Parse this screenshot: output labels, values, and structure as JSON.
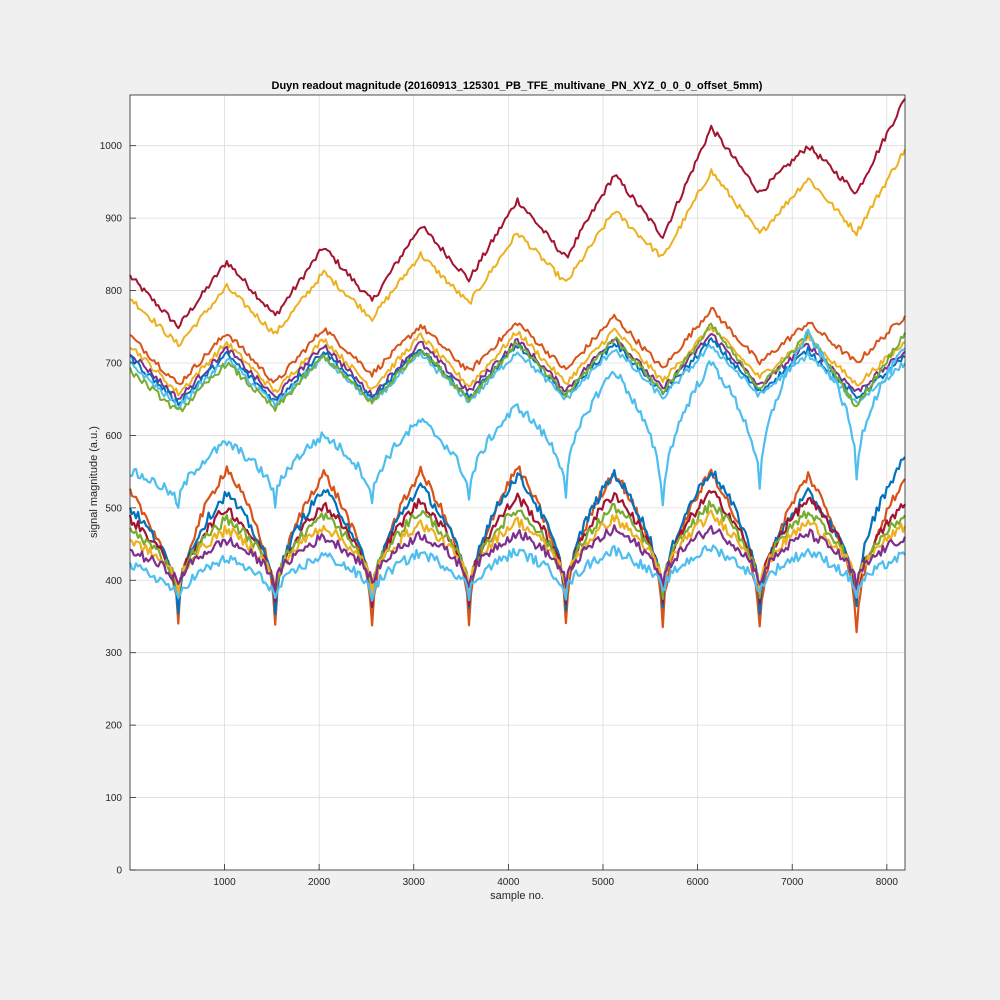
{
  "chart_data": {
    "type": "line",
    "title": "Duyn readout magnitude (20160913_125301_PB_TFE_multivane_PN_XYZ_0_0_0_offset_5mm)",
    "xlabel": "sample no.",
    "ylabel": "signal magnitude (a.u.)",
    "xlim": [
      1,
      8192
    ],
    "ylim": [
      0,
      1070
    ],
    "xticks": [
      1000,
      2000,
      3000,
      4000,
      5000,
      6000,
      7000,
      8000
    ],
    "yticks": [
      0,
      100,
      200,
      300,
      400,
      500,
      600,
      700,
      800,
      900,
      1000
    ],
    "grid": true,
    "legend": "none",
    "colors": [
      "#0072BD",
      "#D95319",
      "#EDB120",
      "#7E2F8E",
      "#77AC30",
      "#4DBEEE",
      "#A2142F"
    ],
    "series_groups": [
      {
        "group": "top",
        "note_values": "approximate sawtooth, period ~1024 samples",
        "x": [
          1,
          512,
          1024,
          1536,
          2048,
          2560,
          3072,
          3584,
          4096,
          4608,
          5120,
          5632,
          6144,
          6656,
          7168,
          7680,
          8192
        ],
        "series": [
          {
            "color": "#A2142F",
            "values": [
              820,
              750,
              840,
              765,
              860,
              785,
              890,
              815,
              925,
              845,
              960,
              875,
              1025,
              935,
              1000,
              935,
              1065
            ]
          },
          {
            "color": "#EDB120",
            "values": [
              790,
              725,
              805,
              740,
              825,
              762,
              850,
              782,
              880,
              810,
              910,
              845,
              965,
              878,
              955,
              880,
              995
            ]
          }
        ]
      },
      {
        "group": "middle",
        "x": [
          1,
          512,
          1024,
          1536,
          2048,
          2560,
          3072,
          3584,
          4096,
          4608,
          5120,
          5632,
          6144,
          6656,
          7168,
          7680,
          8192
        ],
        "series": [
          {
            "color": "#D95319",
            "values": [
              738,
              670,
              742,
              672,
              748,
              685,
              752,
              688,
              756,
              690,
              764,
              692,
              775,
              700,
              756,
              700,
              765
            ]
          },
          {
            "color": "#EDB120",
            "values": [
              725,
              658,
              728,
              660,
              733,
              665,
              738,
              668,
              743,
              672,
              746,
              675,
              750,
              680,
              735,
              670,
              728
            ]
          },
          {
            "color": "#7E2F8E",
            "values": [
              715,
              650,
              720,
              652,
              725,
              655,
              728,
              660,
              732,
              662,
              736,
              664,
              740,
              668,
              726,
              660,
              716
            ]
          },
          {
            "color": "#0072BD",
            "values": [
              708,
              645,
              712,
              647,
              717,
              650,
              720,
              652,
              725,
              655,
              728,
              657,
              732,
              660,
              718,
              652,
              708
            ]
          },
          {
            "color": "#4DBEEE",
            "values": [
              700,
              640,
              705,
              642,
              708,
              645,
              712,
              647,
              716,
              650,
              720,
              652,
              724,
              655,
              712,
              645,
              700
            ]
          },
          {
            "color": "#77AC30",
            "values": [
              690,
              632,
              700,
              636,
              710,
              645,
              720,
              650,
              728,
              655,
              735,
              660,
              752,
              665,
              740,
              640,
              742
            ]
          }
        ]
      },
      {
        "group": "bottom",
        "note_values": "approximate arch (scalloped) bundles, cusp minima ~330 near every 512+1024k samples",
        "x": [
          1,
          512,
          1024,
          1536,
          2048,
          2560,
          3072,
          3584,
          4096,
          4608,
          5120,
          5632,
          6144,
          6656,
          7168,
          7680,
          8192
        ],
        "series": [
          {
            "color": "#4DBEEE",
            "values": [
              550,
              500,
              590,
              505,
              600,
              505,
              620,
              510,
              640,
              520,
              690,
              500,
              700,
              520,
              740,
              540,
              720
            ]
          },
          {
            "color": "#D95319",
            "values": [
              520,
              340,
              555,
              340,
              548,
              335,
              550,
              335,
              555,
              340,
              550,
              338,
              550,
              330,
              545,
              325,
              540
            ]
          },
          {
            "color": "#0072BD",
            "values": [
              500,
              360,
              520,
              360,
              525,
              360,
              530,
              360,
              545,
              360,
              548,
              360,
              552,
              360,
              520,
              360,
              570
            ]
          },
          {
            "color": "#A2142F",
            "values": [
              485,
              370,
              500,
              370,
              505,
              370,
              510,
              370,
              515,
              370,
              520,
              370,
              522,
              370,
              512,
              370,
              505
            ]
          },
          {
            "color": "#77AC30",
            "values": [
              470,
              380,
              485,
              380,
              490,
              380,
              495,
              380,
              498,
              380,
              502,
              380,
              505,
              380,
              495,
              380,
              490
            ]
          },
          {
            "color": "#EDB120",
            "values": [
              455,
              385,
              470,
              385,
              475,
              385,
              478,
              385,
              482,
              385,
              486,
              385,
              490,
              385,
              480,
              385,
              475
            ]
          },
          {
            "color": "#7E2F8E",
            "values": [
              440,
              390,
              455,
              390,
              460,
              390,
              463,
              390,
              466,
              390,
              470,
              390,
              472,
              390,
              465,
              390,
              460
            ]
          },
          {
            "color": "#4DBEEE",
            "values": [
              420,
              370,
              430,
              372,
              435,
              375,
              438,
              378,
              440,
              378,
              442,
              380,
              445,
              380,
              440,
              378,
              435
            ]
          }
        ]
      }
    ]
  }
}
